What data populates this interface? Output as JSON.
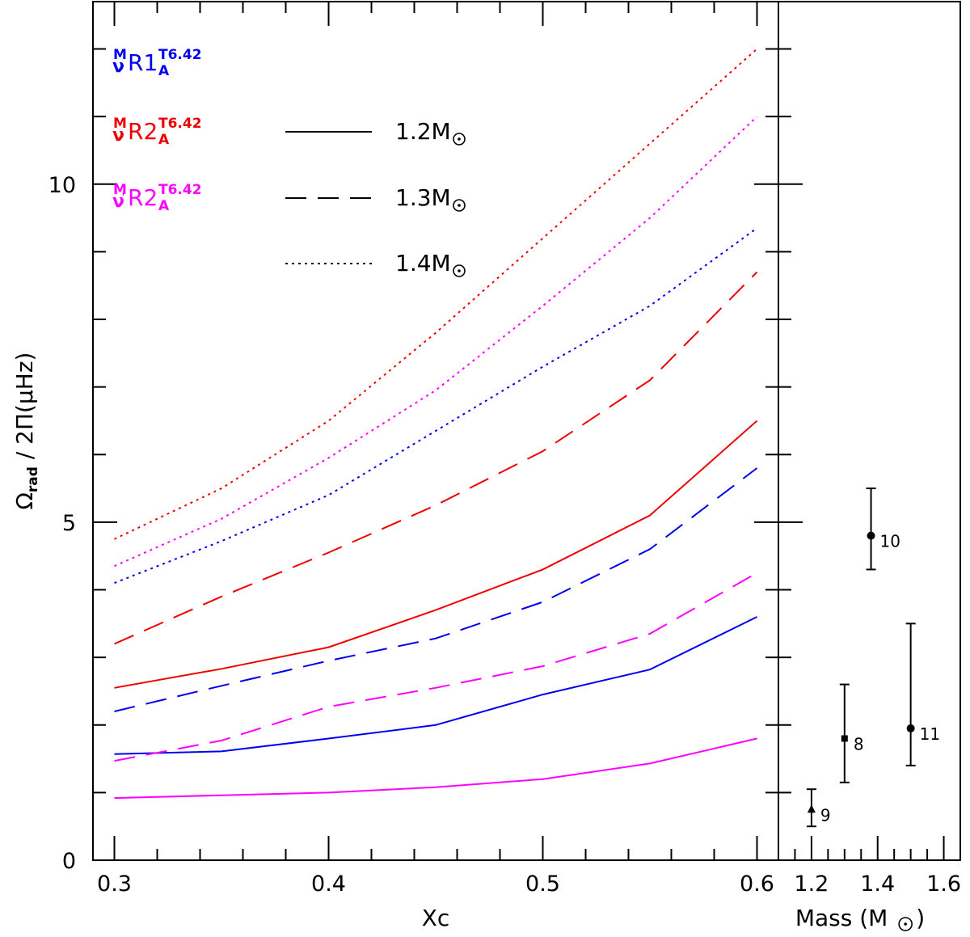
{
  "chart_data": [
    {
      "type": "line",
      "panel": "left",
      "xlabel": "Xc",
      "ylabel": "Ω_rad / 2Π(μHz)",
      "ylabel_parts": {
        "omega": "Ω",
        "sub": "rad",
        "rest": " / 2Π(μHz)"
      },
      "xlim": [
        0.29,
        0.61
      ],
      "ylim": [
        0,
        12.7
      ],
      "xticks": [
        0.3,
        0.4,
        0.5,
        0.6
      ],
      "xtick_labels": [
        "0.3",
        "0.4",
        "0.5",
        "0.6"
      ],
      "yticks": [
        0,
        5,
        10
      ],
      "ytick_labels": [
        "0",
        "5",
        "10"
      ],
      "x": [
        0.3,
        0.35,
        0.4,
        0.45,
        0.5,
        0.55,
        0.6
      ],
      "colors": {
        "blue": "#0000ee",
        "red": "#ee0000",
        "magenta": "#ff00ff"
      },
      "series_labels": [
        {
          "nu": "ν",
          "prime": "",
          "sup_left": "M",
          "name": "R1",
          "sup": "T6.42",
          "sub": "A",
          "color": "#0000ee"
        },
        {
          "nu": "ν",
          "prime": "",
          "sup_left": "M",
          "name": "R2",
          "sup": "T6.42",
          "sub": "A",
          "color": "#ee0000"
        },
        {
          "nu": "ν",
          "prime": "'",
          "sup_left": "M",
          "name": "R2",
          "sup": "T6.42",
          "sub": "A",
          "color": "#ff00ff"
        }
      ],
      "legend": [
        {
          "label": "1.2",
          "unit": "M",
          "style": "solid"
        },
        {
          "label": "1.3",
          "unit": "M",
          "style": "dashed"
        },
        {
          "label": "1.4",
          "unit": "M",
          "style": "dotted"
        }
      ],
      "series": [
        {
          "name": "R1 1.2M",
          "color": "blue",
          "style": "solid",
          "values": [
            1.57,
            1.61,
            1.8,
            2.0,
            2.45,
            2.82,
            3.6
          ]
        },
        {
          "name": "R1 1.3M",
          "color": "blue",
          "style": "dashed",
          "values": [
            2.2,
            2.58,
            2.95,
            3.28,
            3.82,
            4.6,
            5.8
          ]
        },
        {
          "name": "R1 1.4M",
          "color": "blue",
          "style": "dotted",
          "values": [
            4.1,
            4.72,
            5.4,
            6.35,
            7.3,
            8.2,
            9.35
          ]
        },
        {
          "name": "R2 1.2M",
          "color": "red",
          "style": "solid",
          "values": [
            2.55,
            2.83,
            3.15,
            3.7,
            4.3,
            5.1,
            6.5
          ]
        },
        {
          "name": "R2 1.3M",
          "color": "red",
          "style": "dashed",
          "values": [
            3.2,
            3.9,
            4.55,
            5.25,
            6.05,
            7.1,
            8.7
          ]
        },
        {
          "name": "R2 1.4M",
          "color": "red",
          "style": "dotted",
          "values": [
            4.75,
            5.5,
            6.5,
            7.8,
            9.2,
            10.6,
            12.0
          ]
        },
        {
          "name": "R2' 1.2M",
          "color": "magenta",
          "style": "solid",
          "values": [
            0.92,
            0.96,
            1.0,
            1.08,
            1.2,
            1.43,
            1.8
          ]
        },
        {
          "name": "R2' 1.3M",
          "color": "magenta",
          "style": "dashed",
          "values": [
            1.47,
            1.77,
            2.27,
            2.55,
            2.87,
            3.35,
            4.25
          ]
        },
        {
          "name": "R2' 1.4M",
          "color": "magenta",
          "style": "dotted",
          "values": [
            4.35,
            5.05,
            5.95,
            6.95,
            8.2,
            9.5,
            11.0
          ]
        }
      ]
    },
    {
      "type": "scatter",
      "panel": "right",
      "xlabel": "Mass (M",
      "xlabel_close": ")",
      "xlim": [
        1.1,
        1.65
      ],
      "ylim": [
        0,
        12.7
      ],
      "xticks": [
        1.2,
        1.4,
        1.6
      ],
      "xtick_labels": [
        "1.2",
        "1.4",
        "1.6"
      ],
      "points": [
        {
          "label": "9",
          "x": 1.2,
          "y": 0.75,
          "err_low": 0.5,
          "err_high": 1.05,
          "marker": "triangle"
        },
        {
          "label": "8",
          "x": 1.3,
          "y": 1.8,
          "err_low": 1.15,
          "err_high": 2.6,
          "marker": "square"
        },
        {
          "label": "10",
          "x": 1.38,
          "y": 4.8,
          "err_low": 4.3,
          "err_high": 5.5,
          "marker": "circle"
        },
        {
          "label": "11",
          "x": 1.5,
          "y": 1.95,
          "err_low": 1.4,
          "err_high": 3.5,
          "marker": "circle"
        }
      ]
    }
  ]
}
